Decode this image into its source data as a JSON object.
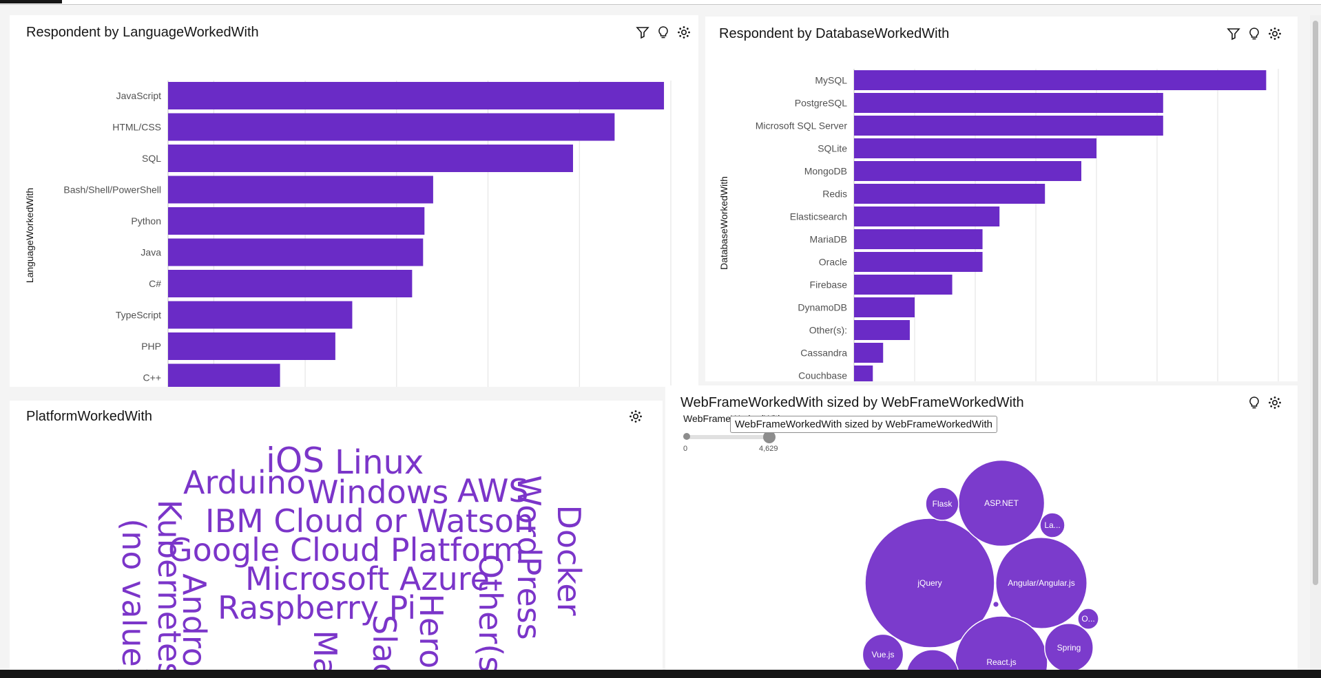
{
  "panels": {
    "language": {
      "title": "Respondent by LanguageWorkedWith",
      "ylabel": "LanguageWorkedWith",
      "icons": [
        "filter-icon",
        "lightbulb-icon",
        "settings-icon"
      ]
    },
    "database": {
      "title": "Respondent by DatabaseWorkedWith",
      "ylabel": "DatabaseWorkedWith",
      "icons": [
        "filter-icon",
        "lightbulb-icon",
        "settings-icon"
      ]
    },
    "platform": {
      "title": "PlatformWorkedWith",
      "icons": [
        "settings-icon"
      ]
    },
    "webframe": {
      "title": "WebFrameWorkedWith sized by WebFrameWorkedWith",
      "legend_title": "WebFrameWorkedWith",
      "slider_min": "0",
      "slider_max": "4,629",
      "tooltip": "WebFrameWorkedWith sized by WebFrameWorkedWith",
      "icons": [
        "lightbulb-icon",
        "settings-icon"
      ]
    }
  },
  "chart_data": [
    {
      "type": "bar",
      "orientation": "horizontal",
      "title": "Respondent by LanguageWorkedWith",
      "ylabel": "LanguageWorkedWith",
      "categories": [
        "JavaScript",
        "HTML/CSS",
        "SQL",
        "Bash/Shell/PowerShell",
        "Python",
        "Java",
        "C#",
        "TypeScript",
        "PHP",
        "C++"
      ],
      "values": [
        108500000,
        97700000,
        88600000,
        58000000,
        56100000,
        55800000,
        53400000,
        40300000,
        36600000,
        24500000
      ],
      "xlim": [
        0,
        110000000
      ],
      "xticks": [
        "0",
        "10,000,000",
        "30,000,000",
        "50,000,000",
        "70,000,000",
        "90,000,000",
        "110,000,000"
      ],
      "color": "#6a2bc6",
      "grid": true
    },
    {
      "type": "bar",
      "orientation": "horizontal",
      "title": "Respondent by DatabaseWorkedWith",
      "ylabel": "DatabaseWorkedWith",
      "categories": [
        "MySQL",
        "PostgreSQL",
        "Microsoft SQL Server",
        "SQLite",
        "MongoDB",
        "Redis",
        "Elasticsearch",
        "MariaDB",
        "Oracle",
        "Firebase",
        "DynamoDB",
        "Other(s):",
        "Cassandra",
        "Couchbase"
      ],
      "values": [
        68000000,
        51000000,
        51000000,
        40000000,
        37500000,
        31500000,
        24000000,
        21200000,
        21200000,
        16200000,
        10000000,
        9200000,
        4800000,
        3100000
      ],
      "xlim": [
        0,
        70000000
      ],
      "color": "#6a2bc6",
      "grid": true
    }
  ],
  "wordcloud": [
    {
      "text": "iOS",
      "size": 50,
      "rotate": false
    },
    {
      "text": "Linux",
      "size": 48,
      "rotate": false
    },
    {
      "text": "Arduino",
      "size": 46,
      "rotate": false
    },
    {
      "text": "Windows",
      "size": 46,
      "rotate": false
    },
    {
      "text": "AWS",
      "size": 46,
      "rotate": false
    },
    {
      "text": "IBM Cloud or Watson",
      "size": 46,
      "rotate": false
    },
    {
      "text": "Google Cloud Platform",
      "size": 46,
      "rotate": false
    },
    {
      "text": "Microsoft Azure",
      "size": 46,
      "rotate": false
    },
    {
      "text": "Raspberry Pi",
      "size": 46,
      "rotate": false
    },
    {
      "text": "(no value)",
      "size": 46,
      "rotate": true
    },
    {
      "text": "Kubernetes",
      "size": 46,
      "rotate": true
    },
    {
      "text": "Android",
      "size": 46,
      "rotate": true
    },
    {
      "text": "Mac",
      "size": 46,
      "rotate": true
    },
    {
      "text": "Slack",
      "size": 46,
      "rotate": true
    },
    {
      "text": "Heroku",
      "size": 46,
      "rotate": true
    },
    {
      "text": "Other(s)",
      "size": 46,
      "rotate": true
    },
    {
      "text": "WordPress",
      "size": 46,
      "rotate": true
    },
    {
      "text": "Docker",
      "size": 46,
      "rotate": true
    }
  ],
  "bubbles": [
    {
      "label": "jQuery",
      "value": 4629
    },
    {
      "label": "ASP.NET",
      "value": 2050
    },
    {
      "label": "Angular/Angular.js",
      "value": 2300
    },
    {
      "label": "React.js",
      "value": 2350
    },
    {
      "label": "Flask",
      "value": 300
    },
    {
      "label": "La...",
      "value": 170
    },
    {
      "label": "O...",
      "value": 120
    },
    {
      "label": "Spring",
      "value": 650
    },
    {
      "label": "Vue.js",
      "value": 460
    },
    {
      "label": "",
      "value": 760
    },
    {
      "label": "",
      "value": 10
    }
  ],
  "colors": {
    "bar": "#6a2bc6",
    "bubble": "#7b3bcc",
    "word": "#7b35c9"
  }
}
